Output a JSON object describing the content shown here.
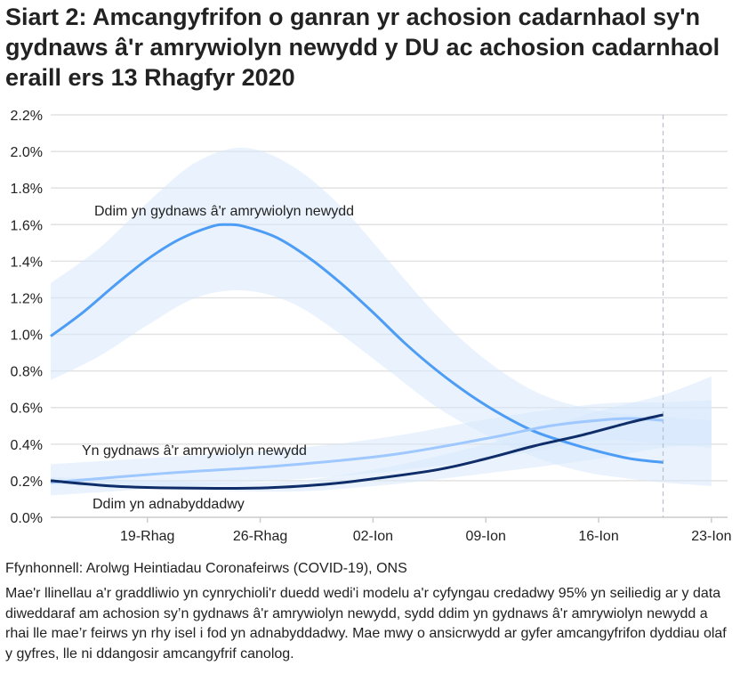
{
  "title": "Siart 2: Amcangyfrifon o ganran yr achosion cadarnhaol sy'n gydnaws â'r amrywiolyn newydd y DU ac achosion cadarnhaol eraill ers 13 Rhagfyr 2020",
  "source": "Ffynhonnell: Arolwg Heintiadau Coronafeirws (COVID-19), ONS",
  "note": "Mae'r llinellau a'r graddliwio yn cynrychioli'r duedd wedi'i modelu a'r cyfyngau credadwy 95% yn seiliedig ar y data diweddaraf am achosion sy’n gydnaws â'r amrywiolyn newydd, sydd ddim yn gydnaws â'r amrywiolyn newydd a rhai lle mae’r feirws yn rhy isel i fod yn adnabyddadwy. Mae mwy o ansicrwydd ar gyfer amcangyfrifon dyddiau olaf y gyfres, lle ni ddangosir amcangyfrif canolog.",
  "chart_data": {
    "type": "line",
    "xlim": [
      "2020-12-13",
      "2021-01-24"
    ],
    "ylim": [
      0,
      2.2
    ],
    "yticks": [
      "0.0%",
      "0.2%",
      "0.4%",
      "0.6%",
      "0.8%",
      "1.0%",
      "1.2%",
      "1.4%",
      "1.6%",
      "1.8%",
      "2.0%",
      "2.2%"
    ],
    "xticks": [
      {
        "date": "2020-12-19",
        "label": "19-Rhag"
      },
      {
        "date": "2020-12-26",
        "label": "26-Rhag"
      },
      {
        "date": "2021-01-02",
        "label": "02-Ion"
      },
      {
        "date": "2021-01-09",
        "label": "09-Ion"
      },
      {
        "date": "2021-01-16",
        "label": "16-Ion"
      },
      {
        "date": "2021-01-23",
        "label": "23-Ion"
      }
    ],
    "grid": true,
    "reference_line": {
      "date": "2021-01-20",
      "style": "dashed"
    },
    "band_color": "#d6e7fc",
    "series": [
      {
        "name": "Ddim yn gydnaws â'r amrywiolyn newydd",
        "color": "#4d9cf5",
        "points": [
          [
            "2020-12-13",
            0.99
          ],
          [
            "2020-12-15",
            1.12
          ],
          [
            "2020-12-17",
            1.27
          ],
          [
            "2020-12-19",
            1.41
          ],
          [
            "2020-12-21",
            1.52
          ],
          [
            "2020-12-23",
            1.59
          ],
          [
            "2020-12-24",
            1.6
          ],
          [
            "2020-12-25",
            1.59
          ],
          [
            "2020-12-27",
            1.53
          ],
          [
            "2020-12-29",
            1.42
          ],
          [
            "2020-12-31",
            1.28
          ],
          [
            "2021-01-02",
            1.12
          ],
          [
            "2021-01-04",
            0.95
          ],
          [
            "2021-01-06",
            0.8
          ],
          [
            "2021-01-08",
            0.67
          ],
          [
            "2021-01-10",
            0.56
          ],
          [
            "2021-01-12",
            0.47
          ],
          [
            "2021-01-14",
            0.41
          ],
          [
            "2021-01-16",
            0.36
          ],
          [
            "2021-01-18",
            0.32
          ],
          [
            "2021-01-20",
            0.3
          ]
        ],
        "upper": [
          [
            "2020-12-13",
            1.28
          ],
          [
            "2020-12-16",
            1.47
          ],
          [
            "2020-12-19",
            1.72
          ],
          [
            "2020-12-22",
            1.94
          ],
          [
            "2020-12-25",
            2.02
          ],
          [
            "2020-12-28",
            1.92
          ],
          [
            "2020-12-31",
            1.7
          ],
          [
            "2021-01-03",
            1.4
          ],
          [
            "2021-01-06",
            1.1
          ],
          [
            "2021-01-09",
            0.86
          ],
          [
            "2021-01-12",
            0.69
          ],
          [
            "2021-01-15",
            0.6
          ],
          [
            "2021-01-18",
            0.56
          ],
          [
            "2021-01-20",
            0.55
          ],
          [
            "2021-01-23",
            0.53
          ]
        ],
        "lower": [
          [
            "2020-12-13",
            0.75
          ],
          [
            "2020-12-16",
            0.88
          ],
          [
            "2020-12-19",
            1.05
          ],
          [
            "2020-12-22",
            1.2
          ],
          [
            "2020-12-25",
            1.24
          ],
          [
            "2020-12-28",
            1.17
          ],
          [
            "2020-12-31",
            1.0
          ],
          [
            "2021-01-03",
            0.8
          ],
          [
            "2021-01-06",
            0.6
          ],
          [
            "2021-01-09",
            0.45
          ],
          [
            "2021-01-12",
            0.33
          ],
          [
            "2021-01-15",
            0.25
          ],
          [
            "2021-01-18",
            0.21
          ],
          [
            "2021-01-20",
            0.19
          ],
          [
            "2021-01-23",
            0.17
          ]
        ]
      },
      {
        "name": "Yn gydnaws â'r amrywiolyn newydd",
        "color": "#9ec8ff",
        "points": [
          [
            "2020-12-13",
            0.19
          ],
          [
            "2020-12-20",
            0.24
          ],
          [
            "2020-12-27",
            0.28
          ],
          [
            "2021-01-03",
            0.34
          ],
          [
            "2021-01-09",
            0.43
          ],
          [
            "2021-01-13",
            0.5
          ],
          [
            "2021-01-16",
            0.53
          ],
          [
            "2021-01-18",
            0.54
          ],
          [
            "2021-01-20",
            0.53
          ]
        ],
        "upper": [
          [
            "2020-12-13",
            0.29
          ],
          [
            "2020-12-27",
            0.37
          ],
          [
            "2021-01-03",
            0.44
          ],
          [
            "2021-01-10",
            0.55
          ],
          [
            "2021-01-16",
            0.62
          ],
          [
            "2021-01-20",
            0.63
          ],
          [
            "2021-01-23",
            0.64
          ]
        ],
        "lower": [
          [
            "2020-12-13",
            0.12
          ],
          [
            "2020-12-27",
            0.2
          ],
          [
            "2021-01-03",
            0.25
          ],
          [
            "2021-01-10",
            0.33
          ],
          [
            "2021-01-16",
            0.42
          ],
          [
            "2021-01-20",
            0.4
          ],
          [
            "2021-01-23",
            0.38
          ]
        ]
      },
      {
        "name": "Ddim yn adnabyddadwy",
        "color": "#0f2d69",
        "points": [
          [
            "2020-12-13",
            0.2
          ],
          [
            "2020-12-17",
            0.17
          ],
          [
            "2020-12-21",
            0.16
          ],
          [
            "2020-12-26",
            0.16
          ],
          [
            "2020-12-30",
            0.18
          ],
          [
            "2021-01-02",
            0.21
          ],
          [
            "2021-01-06",
            0.26
          ],
          [
            "2021-01-09",
            0.32
          ],
          [
            "2021-01-12",
            0.39
          ],
          [
            "2021-01-15",
            0.45
          ],
          [
            "2021-01-18",
            0.52
          ],
          [
            "2021-01-20",
            0.56
          ]
        ],
        "upper": [
          [
            "2020-12-13",
            0.22
          ],
          [
            "2020-12-26",
            0.19
          ],
          [
            "2021-01-02",
            0.26
          ],
          [
            "2021-01-09",
            0.4
          ],
          [
            "2021-01-16",
            0.58
          ],
          [
            "2021-01-20",
            0.67
          ],
          [
            "2021-01-23",
            0.77
          ]
        ],
        "lower": [
          [
            "2020-12-13",
            0.18
          ],
          [
            "2020-12-26",
            0.14
          ],
          [
            "2021-01-02",
            0.17
          ],
          [
            "2021-01-09",
            0.24
          ],
          [
            "2021-01-16",
            0.32
          ],
          [
            "2021-01-20",
            0.38
          ],
          [
            "2021-01-23",
            0.4
          ]
        ]
      }
    ]
  }
}
